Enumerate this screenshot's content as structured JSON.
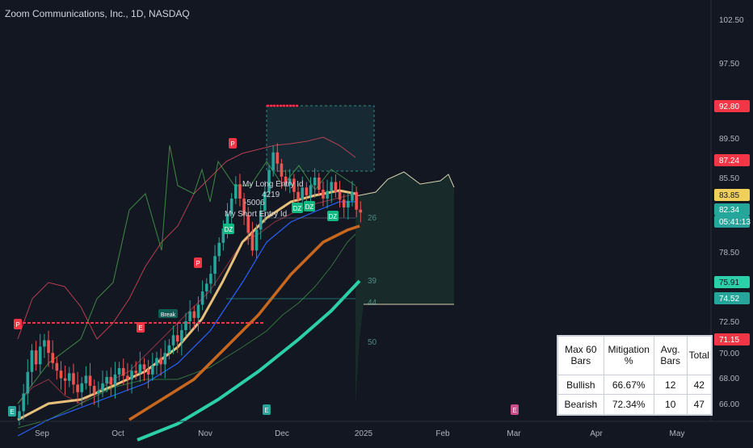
{
  "chart_title": "Zoom Communications, Inc., 1D, NASDAQ",
  "colors": {
    "background": "#131722",
    "up_candle": "#26a69a",
    "down_candle": "#ef5350",
    "ma_fast": "#e6c07b",
    "ma_mid": "#c8671e",
    "ma_slow": "#2bd0a8",
    "ema_blue": "#2962ff",
    "band_red": "#e0485a",
    "band_green": "#4caf50",
    "break_line": "#f23645"
  },
  "price_axis": {
    "ticks": [
      "102.50",
      "97.50",
      "89.50",
      "85.50",
      "78.50",
      "72.50",
      "70.00",
      "68.00",
      "66.00"
    ],
    "badges": [
      {
        "label": "92.80",
        "color": "#f23645",
        "text_color": "#ffffff"
      },
      {
        "label": "87.24",
        "color": "#f23645",
        "text_color": "#ffffff"
      },
      {
        "label": "83.85",
        "color": "#f0d05a",
        "text_color": "#131722"
      },
      {
        "label": "82.34",
        "color": "#26a69a",
        "text_color": "#ffffff"
      },
      {
        "label": "05:41:13",
        "color": "#26a69a",
        "text_color": "#ffffff"
      },
      {
        "label": "75.91",
        "color": "#2bd0a8",
        "text_color": "#131722"
      },
      {
        "label": "74.52",
        "color": "#26a69a",
        "text_color": "#ffffff"
      },
      {
        "label": "71.15",
        "color": "#f23645",
        "text_color": "#ffffff"
      }
    ]
  },
  "time_axis": {
    "ticks": [
      "Sep",
      "Oct",
      "Nov",
      "Dec",
      "2025",
      "Feb",
      "Mar",
      "Apr",
      "May"
    ]
  },
  "annotations": {
    "long_entry": "My Long Entry Id",
    "long_value": "4219",
    "short_value": "-5006",
    "short_entry": "My Short Entry Id",
    "break_label": "Break",
    "level_labels": [
      "26",
      "39",
      "44",
      "50"
    ],
    "markers": [
      "P",
      "P",
      "P",
      "E",
      "DZ",
      "DZ",
      "DZ",
      "DZ",
      "E",
      "E",
      "E"
    ]
  },
  "stats_table": {
    "header": [
      "Max 60 Bars",
      "Mitigation %",
      "Avg. Bars",
      "Total"
    ],
    "rows": [
      {
        "label": "Bullish",
        "mitigation": "66.67%",
        "avg_bars": "12",
        "total": "42"
      },
      {
        "label": "Bearish",
        "mitigation": "72.34%",
        "avg_bars": "10",
        "total": "47"
      }
    ]
  },
  "chart_data": {
    "type": "candlestick",
    "title": "Zoom Communications, Inc., 1D, NASDAQ",
    "x_axis_ticks": [
      "Sep",
      "Oct",
      "Nov",
      "Dec",
      "2025",
      "Feb",
      "Mar",
      "Apr",
      "May"
    ],
    "y_axis_ticks": [
      102.5,
      97.5,
      89.5,
      85.5,
      78.5,
      72.5,
      70.0,
      68.0,
      66.0
    ],
    "ylim": [
      64.5,
      104.5
    ],
    "closes": [
      65.4,
      66.8,
      68.5,
      70.2,
      69.1,
      70.5,
      71.0,
      70.0,
      69.2,
      68.6,
      68.0,
      67.8,
      68.4,
      67.5,
      66.9,
      67.6,
      68.2,
      67.4,
      66.8,
      67.0,
      67.6,
      68.1,
      67.5,
      68.3,
      68.8,
      68.2,
      67.9,
      68.6,
      68.4,
      69.1,
      68.7,
      68.3,
      69.0,
      69.6,
      69.1,
      70.0,
      70.6,
      71.4,
      70.9,
      71.8,
      72.5,
      73.4,
      72.8,
      74.0,
      75.2,
      75.9,
      76.8,
      78.4,
      79.6,
      80.9,
      82.2,
      83.6,
      84.9,
      83.6,
      82.1,
      80.5,
      78.9,
      80.8,
      82.5,
      84.2,
      86.3,
      88.2,
      87.0,
      85.6,
      84.8,
      85.4,
      84.2,
      83.5,
      84.6,
      83.9,
      84.8,
      85.5,
      84.4,
      83.6,
      84.3,
      85.1,
      84.2,
      83.5,
      82.8,
      83.4,
      84.2,
      82.6,
      82.34
    ],
    "levels": {
      "supply_zone_top": 92.8,
      "supply_zone_bottom": 86.0,
      "last_price": 82.34,
      "ma_cloud_top": 83.85,
      "break_level": 71.15,
      "support": 74.52,
      "ma_slow_end": 75.91
    },
    "legend": "none",
    "grid": false
  }
}
